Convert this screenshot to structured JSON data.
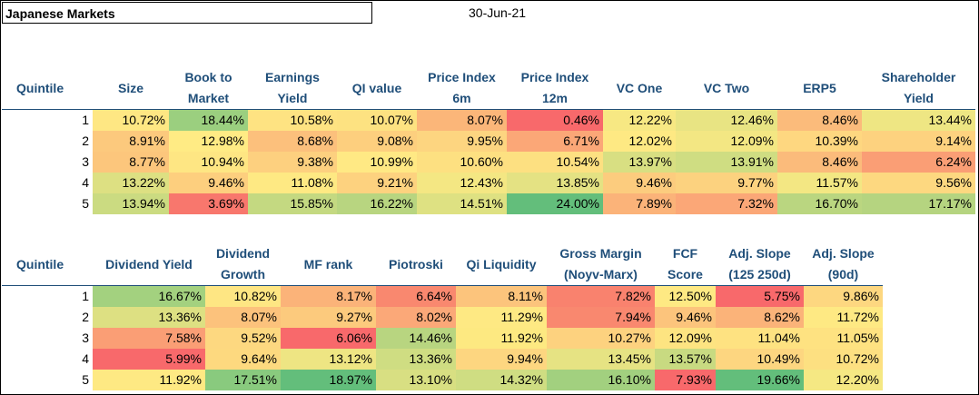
{
  "title": "Japanese Markets",
  "date": "30-Jun-21",
  "table1": {
    "headers": [
      [
        "Quintile"
      ],
      [
        "Size"
      ],
      [
        "Book to",
        "Market"
      ],
      [
        "Earnings",
        "Yield"
      ],
      [
        "QI value"
      ],
      [
        "Price Index",
        "6m"
      ],
      [
        "Price Index",
        "12m"
      ],
      [
        "VC One"
      ],
      [
        "VC Two"
      ],
      [
        "ERP5"
      ],
      [
        "Shareholder",
        "Yield"
      ]
    ],
    "rows": [
      {
        "q": "1",
        "cells": [
          {
            "v": "10.72%",
            "c": "#fee783"
          },
          {
            "v": "18.44%",
            "c": "#9bcf7f"
          },
          {
            "v": "10.58%",
            "c": "#fee382"
          },
          {
            "v": "10.07%",
            "c": "#fde281"
          },
          {
            "v": "8.07%",
            "c": "#fbb679"
          },
          {
            "v": "0.46%",
            "c": "#f8696b"
          },
          {
            "v": "12.22%",
            "c": "#f7e883"
          },
          {
            "v": "12.46%",
            "c": "#e8e483"
          },
          {
            "v": "8.46%",
            "c": "#fbbb7b"
          },
          {
            "v": "13.44%",
            "c": "#eee683"
          }
        ]
      },
      {
        "q": "2",
        "cells": [
          {
            "v": "8.91%",
            "c": "#fcc97d"
          },
          {
            "v": "12.98%",
            "c": "#ffeb84"
          },
          {
            "v": "8.68%",
            "c": "#fcc07c"
          },
          {
            "v": "9.08%",
            "c": "#fdcf7e"
          },
          {
            "v": "9.95%",
            "c": "#fdd580"
          },
          {
            "v": "6.71%",
            "c": "#fba777"
          },
          {
            "v": "12.02%",
            "c": "#fee983"
          },
          {
            "v": "12.09%",
            "c": "#f3e783"
          },
          {
            "v": "10.39%",
            "c": "#fed780"
          },
          {
            "v": "9.14%",
            "c": "#fdd27f"
          }
        ]
      },
      {
        "q": "3",
        "cells": [
          {
            "v": "8.77%",
            "c": "#fcc67c"
          },
          {
            "v": "10.94%",
            "c": "#fee683"
          },
          {
            "v": "9.38%",
            "c": "#fdd07f"
          },
          {
            "v": "10.99%",
            "c": "#ffe984"
          },
          {
            "v": "10.60%",
            "c": "#fde081"
          },
          {
            "v": "10.54%",
            "c": "#fde081"
          },
          {
            "v": "13.97%",
            "c": "#d8df82"
          },
          {
            "v": "13.91%",
            "c": "#cfdd82"
          },
          {
            "v": "8.46%",
            "c": "#fbbb7b"
          },
          {
            "v": "6.24%",
            "c": "#fa9e75"
          }
        ]
      },
      {
        "q": "4",
        "cells": [
          {
            "v": "13.22%",
            "c": "#dde082"
          },
          {
            "v": "9.46%",
            "c": "#fdcf7e"
          },
          {
            "v": "11.08%",
            "c": "#fee983"
          },
          {
            "v": "9.21%",
            "c": "#fdd27f"
          },
          {
            "v": "12.43%",
            "c": "#f4e783"
          },
          {
            "v": "13.85%",
            "c": "#e4e283"
          },
          {
            "v": "9.46%",
            "c": "#fccc7e"
          },
          {
            "v": "9.77%",
            "c": "#fcd27f"
          },
          {
            "v": "11.57%",
            "c": "#f3e783"
          },
          {
            "v": "9.56%",
            "c": "#fdd880"
          }
        ]
      },
      {
        "q": "5",
        "cells": [
          {
            "v": "13.94%",
            "c": "#cbdb81"
          },
          {
            "v": "3.69%",
            "c": "#f8776d"
          },
          {
            "v": "15.85%",
            "c": "#c4d981"
          },
          {
            "v": "16.22%",
            "c": "#b8d580"
          },
          {
            "v": "14.51%",
            "c": "#dee182"
          },
          {
            "v": "24.00%",
            "c": "#63be7b"
          },
          {
            "v": "7.89%",
            "c": "#fbb379"
          },
          {
            "v": "7.32%",
            "c": "#fba777"
          },
          {
            "v": "16.70%",
            "c": "#bad680"
          },
          {
            "v": "17.17%",
            "c": "#b5d480"
          }
        ]
      }
    ]
  },
  "table2": {
    "headers": [
      [
        "Quintile"
      ],
      [
        "Dividend Yield"
      ],
      [
        "Dividend",
        "Growth"
      ],
      [
        "MF rank"
      ],
      [
        "Piotroski"
      ],
      [
        "Qi Liquidity"
      ],
      [
        "Gross Margin",
        "(Noyv-Marx)"
      ],
      [
        "FCF",
        "Score"
      ],
      [
        "Adj. Slope",
        "(125 250d)"
      ],
      [
        "Adj. Slope",
        "(90d)"
      ]
    ],
    "rows": [
      {
        "q": "1",
        "cells": [
          {
            "v": "16.67%",
            "c": "#a3d17f"
          },
          {
            "v": "10.82%",
            "c": "#fee683"
          },
          {
            "v": "8.17%",
            "c": "#fbb379"
          },
          {
            "v": "6.64%",
            "c": "#f9886f"
          },
          {
            "v": "8.11%",
            "c": "#fcc47c"
          },
          {
            "v": "7.82%",
            "c": "#f9826e"
          },
          {
            "v": "12.50%",
            "c": "#fee983"
          },
          {
            "v": "5.75%",
            "c": "#f8696b"
          },
          {
            "v": "9.86%",
            "c": "#fdd780"
          }
        ]
      },
      {
        "q": "2",
        "cells": [
          {
            "v": "13.36%",
            "c": "#dde082"
          },
          {
            "v": "8.07%",
            "c": "#fcc27c"
          },
          {
            "v": "9.27%",
            "c": "#fcca7d"
          },
          {
            "v": "8.02%",
            "c": "#fba878"
          },
          {
            "v": "11.29%",
            "c": "#fee983"
          },
          {
            "v": "7.94%",
            "c": "#f9886f"
          },
          {
            "v": "9.46%",
            "c": "#fcc47c"
          },
          {
            "v": "8.62%",
            "c": "#fbb379"
          },
          {
            "v": "11.72%",
            "c": "#fee983"
          }
        ]
      },
      {
        "q": "3",
        "cells": [
          {
            "v": "7.58%",
            "c": "#fa9e75"
          },
          {
            "v": "9.52%",
            "c": "#fdd880"
          },
          {
            "v": "6.06%",
            "c": "#f8696b"
          },
          {
            "v": "14.46%",
            "c": "#b8d580"
          },
          {
            "v": "11.92%",
            "c": "#fde981"
          },
          {
            "v": "10.27%",
            "c": "#fdd27f"
          },
          {
            "v": "12.09%",
            "c": "#fde481"
          },
          {
            "v": "11.04%",
            "c": "#fee281"
          },
          {
            "v": "11.05%",
            "c": "#fee281"
          }
        ]
      },
      {
        "q": "4",
        "cells": [
          {
            "v": "5.99%",
            "c": "#f8696b"
          },
          {
            "v": "9.64%",
            "c": "#fdd97f"
          },
          {
            "v": "13.12%",
            "c": "#eee583"
          },
          {
            "v": "13.36%",
            "c": "#cfdd82"
          },
          {
            "v": "9.94%",
            "c": "#fdd680"
          },
          {
            "v": "13.45%",
            "c": "#e6e383"
          },
          {
            "v": "13.57%",
            "c": "#c8da81"
          },
          {
            "v": "10.49%",
            "c": "#fdd680"
          },
          {
            "v": "10.72%",
            "c": "#fde081"
          }
        ]
      },
      {
        "q": "5",
        "cells": [
          {
            "v": "11.92%",
            "c": "#fee983"
          },
          {
            "v": "17.51%",
            "c": "#89ca7e"
          },
          {
            "v": "18.97%",
            "c": "#63be7b"
          },
          {
            "v": "13.10%",
            "c": "#d8df82"
          },
          {
            "v": "14.32%",
            "c": "#cfdd82"
          },
          {
            "v": "16.10%",
            "c": "#a2d07f"
          },
          {
            "v": "7.93%",
            "c": "#f8696b"
          },
          {
            "v": "19.66%",
            "c": "#63be7b"
          },
          {
            "v": "12.20%",
            "c": "#f5e883"
          }
        ]
      }
    ]
  }
}
